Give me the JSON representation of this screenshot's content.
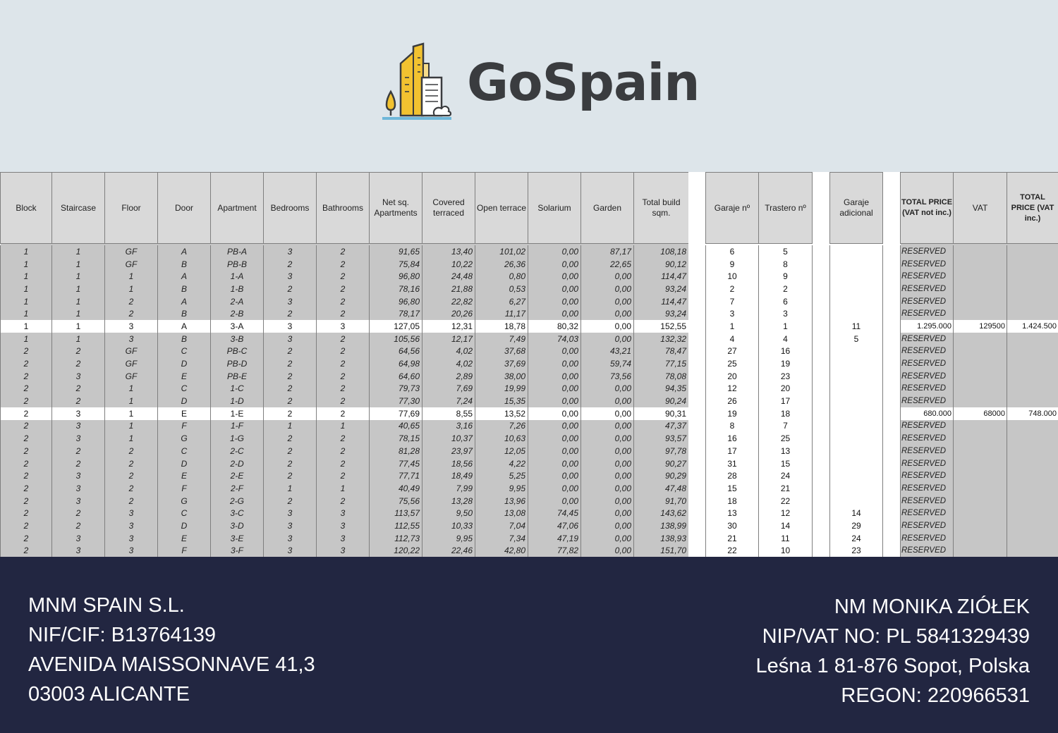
{
  "brand": {
    "name": "GoSpain"
  },
  "table": {
    "columns": [
      "Block",
      "Staircase",
      "Floor",
      "Door",
      "Apartment",
      "Bedrooms",
      "Bathrooms",
      "Net sq. Apartments",
      "Covered terraced",
      "Open terrace",
      "Solarium",
      "Garden",
      "Total build sqm."
    ],
    "rows": [
      [
        "1",
        "1",
        "GF",
        "A",
        "PB-A",
        "3",
        "2",
        "91,65",
        "13,40",
        "101,02",
        "0,00",
        "87,17",
        "108,18"
      ],
      [
        "1",
        "1",
        "GF",
        "B",
        "PB-B",
        "2",
        "2",
        "75,84",
        "10,22",
        "26,36",
        "0,00",
        "22,65",
        "90,12"
      ],
      [
        "1",
        "1",
        "1",
        "A",
        "1-A",
        "3",
        "2",
        "96,80",
        "24,48",
        "0,80",
        "0,00",
        "0,00",
        "114,47"
      ],
      [
        "1",
        "1",
        "1",
        "B",
        "1-B",
        "2",
        "2",
        "78,16",
        "21,88",
        "0,53",
        "0,00",
        "0,00",
        "93,24"
      ],
      [
        "1",
        "1",
        "2",
        "A",
        "2-A",
        "3",
        "2",
        "96,80",
        "22,82",
        "6,27",
        "0,00",
        "0,00",
        "114,47"
      ],
      [
        "1",
        "1",
        "2",
        "B",
        "2-B",
        "2",
        "2",
        "78,17",
        "20,26",
        "11,17",
        "0,00",
        "0,00",
        "93,24"
      ],
      [
        "1",
        "1",
        "3",
        "A",
        "3-A",
        "3",
        "3",
        "127,05",
        "12,31",
        "18,78",
        "80,32",
        "0,00",
        "152,55"
      ],
      [
        "1",
        "1",
        "3",
        "B",
        "3-B",
        "3",
        "2",
        "105,56",
        "12,17",
        "7,49",
        "74,03",
        "0,00",
        "132,32"
      ],
      [
        "2",
        "2",
        "GF",
        "C",
        "PB-C",
        "2",
        "2",
        "64,56",
        "4,02",
        "37,68",
        "0,00",
        "43,21",
        "78,47"
      ],
      [
        "2",
        "2",
        "GF",
        "D",
        "PB-D",
        "2",
        "2",
        "64,98",
        "4,02",
        "37,69",
        "0,00",
        "59,74",
        "77,15"
      ],
      [
        "2",
        "3",
        "GF",
        "E",
        "PB-E",
        "2",
        "2",
        "64,60",
        "2,89",
        "38,00",
        "0,00",
        "73,56",
        "78,08"
      ],
      [
        "2",
        "2",
        "1",
        "C",
        "1-C",
        "2",
        "2",
        "79,73",
        "7,69",
        "19,99",
        "0,00",
        "0,00",
        "94,35"
      ],
      [
        "2",
        "2",
        "1",
        "D",
        "1-D",
        "2",
        "2",
        "77,30",
        "7,24",
        "15,35",
        "0,00",
        "0,00",
        "90,24"
      ],
      [
        "2",
        "3",
        "1",
        "E",
        "1-E",
        "2",
        "2",
        "77,69",
        "8,55",
        "13,52",
        "0,00",
        "0,00",
        "90,31"
      ],
      [
        "2",
        "3",
        "1",
        "F",
        "1-F",
        "1",
        "1",
        "40,65",
        "3,16",
        "7,26",
        "0,00",
        "0,00",
        "47,37"
      ],
      [
        "2",
        "3",
        "1",
        "G",
        "1-G",
        "2",
        "2",
        "78,15",
        "10,37",
        "10,63",
        "0,00",
        "0,00",
        "93,57"
      ],
      [
        "2",
        "2",
        "2",
        "C",
        "2-C",
        "2",
        "2",
        "81,28",
        "23,97",
        "12,05",
        "0,00",
        "0,00",
        "97,78"
      ],
      [
        "2",
        "2",
        "2",
        "D",
        "2-D",
        "2",
        "2",
        "77,45",
        "18,56",
        "4,22",
        "0,00",
        "0,00",
        "90,27"
      ],
      [
        "2",
        "3",
        "2",
        "E",
        "2-E",
        "2",
        "2",
        "77,71",
        "18,49",
        "5,25",
        "0,00",
        "0,00",
        "90,29"
      ],
      [
        "2",
        "3",
        "2",
        "F",
        "2-F",
        "1",
        "1",
        "40,49",
        "7,99",
        "9,95",
        "0,00",
        "0,00",
        "47,48"
      ],
      [
        "2",
        "3",
        "2",
        "G",
        "2-G",
        "2",
        "2",
        "75,56",
        "13,28",
        "13,96",
        "0,00",
        "0,00",
        "91,70"
      ],
      [
        "2",
        "2",
        "3",
        "C",
        "3-C",
        "3",
        "3",
        "113,57",
        "9,50",
        "13,08",
        "74,45",
        "0,00",
        "143,62"
      ],
      [
        "2",
        "2",
        "3",
        "D",
        "3-D",
        "3",
        "3",
        "112,55",
        "10,33",
        "7,04",
        "47,06",
        "0,00",
        "138,99"
      ],
      [
        "2",
        "3",
        "3",
        "E",
        "3-E",
        "3",
        "3",
        "112,73",
        "9,95",
        "7,34",
        "47,19",
        "0,00",
        "138,93"
      ],
      [
        "2",
        "3",
        "3",
        "F",
        "3-F",
        "3",
        "3",
        "120,22",
        "22,46",
        "42,80",
        "77,82",
        "0,00",
        "151,70"
      ]
    ],
    "highlight_rows": [
      6,
      13
    ],
    "garage_columns": [
      "Garaje nº",
      "Trastero nº"
    ],
    "garage_rows": [
      [
        "6",
        "5"
      ],
      [
        "9",
        "8"
      ],
      [
        "10",
        "9"
      ],
      [
        "2",
        "2"
      ],
      [
        "7",
        "6"
      ],
      [
        "3",
        "3"
      ],
      [
        "1",
        "1"
      ],
      [
        "4",
        "4"
      ],
      [
        "27",
        "16"
      ],
      [
        "25",
        "19"
      ],
      [
        "20",
        "23"
      ],
      [
        "12",
        "20"
      ],
      [
        "26",
        "17"
      ],
      [
        "19",
        "18"
      ],
      [
        "8",
        "7"
      ],
      [
        "16",
        "25"
      ],
      [
        "17",
        "13"
      ],
      [
        "31",
        "15"
      ],
      [
        "28",
        "24"
      ],
      [
        "15",
        "21"
      ],
      [
        "18",
        "22"
      ],
      [
        "13",
        "12"
      ],
      [
        "30",
        "14"
      ],
      [
        "21",
        "11"
      ],
      [
        "22",
        "10"
      ]
    ],
    "extra_garage_column": "Garaje adicional",
    "extra_garage": [
      "",
      "",
      "",
      "",
      "",
      "",
      "11",
      "5",
      "",
      "",
      "",
      "",
      "",
      "",
      "",
      "",
      "",
      "",
      "",
      "",
      "",
      "14",
      "29",
      "24",
      "23"
    ],
    "price_columns": [
      "TOTAL PRICE (VAT not inc.)",
      "VAT",
      "TOTAL PRICE (VAT inc.)"
    ],
    "price_rows": [
      [
        "RESERVED",
        "",
        ""
      ],
      [
        "RESERVED",
        "",
        ""
      ],
      [
        "RESERVED",
        "",
        ""
      ],
      [
        "RESERVED",
        "",
        ""
      ],
      [
        "RESERVED",
        "",
        ""
      ],
      [
        "RESERVED",
        "",
        ""
      ],
      [
        "1.295.000",
        "129500",
        "1.424.500"
      ],
      [
        "RESERVED",
        "",
        ""
      ],
      [
        "RESERVED",
        "",
        ""
      ],
      [
        "RESERVED",
        "",
        ""
      ],
      [
        "RESERVED",
        "",
        ""
      ],
      [
        "RESERVED",
        "",
        ""
      ],
      [
        "RESERVED",
        "",
        ""
      ],
      [
        "680.000",
        "68000",
        "748.000"
      ],
      [
        "RESERVED",
        "",
        ""
      ],
      [
        "RESERVED",
        "",
        ""
      ],
      [
        "RESERVED",
        "",
        ""
      ],
      [
        "RESERVED",
        "",
        ""
      ],
      [
        "RESERVED",
        "",
        ""
      ],
      [
        "RESERVED",
        "",
        ""
      ],
      [
        "RESERVED",
        "",
        ""
      ],
      [
        "RESERVED",
        "",
        ""
      ],
      [
        "RESERVED",
        "",
        ""
      ],
      [
        "RESERVED",
        "",
        ""
      ],
      [
        "RESERVED",
        "",
        ""
      ]
    ]
  },
  "footer": {
    "left": [
      "MNM SPAIN S.L.",
      "NIF/CIF: B13764139",
      "AVENIDA MAISSONNAVE 41,3",
      "03003 ALICANTE"
    ],
    "right": [
      "NM MONIKA ZIÓŁEK",
      "NIP/VAT NO: PL 5841329439",
      "Leśna 1 81-876 Sopot, Polska",
      "REGON: 220966531"
    ]
  },
  "colors": {
    "header_bg": "#dde5ea",
    "footer_bg": "#222641",
    "cell_gray": "#c6c6c6",
    "logo_yellow": "#f2c230",
    "logo_dark": "#3a3c3f",
    "logo_blue": "#6fb7d9"
  }
}
